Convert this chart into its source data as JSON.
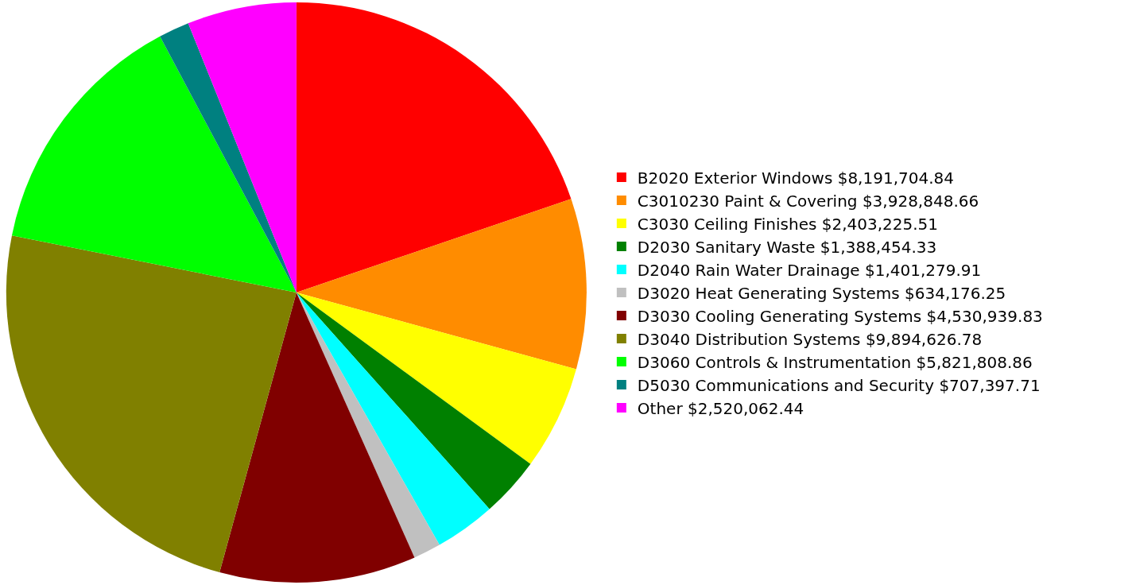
{
  "chart_data": {
    "type": "pie",
    "categories": [
      "B2020 Exterior Windows $8,191,704.84",
      "C3010230 Paint & Covering $3,928,848.66",
      "C3030 Ceiling Finishes $2,403,225.51",
      "D2030 Sanitary Waste $1,388,454.33",
      "D2040 Rain Water Drainage $1,401,279.91",
      "D3020 Heat Generating Systems $634,176.25",
      "D3030 Cooling Generating Systems $4,530,939.83",
      "D3040 Distribution Systems $9,894,626.78",
      "D3060 Controls & Instrumentation $5,821,808.86",
      "D5030 Communications and Security $707,397.71",
      "Other $2,520,062.44"
    ],
    "values": [
      8191704.84,
      3928848.66,
      2403225.51,
      1388454.33,
      1401279.91,
      634176.25,
      4530939.83,
      9894626.78,
      5821808.86,
      707397.71,
      2520062.44
    ],
    "colors": [
      "#ff0000",
      "#ff8c00",
      "#ffff00",
      "#008000",
      "#00ffff",
      "#c0c0c0",
      "#800000",
      "#808000",
      "#00ff00",
      "#008080",
      "#ff00ff"
    ],
    "legend": "right"
  }
}
